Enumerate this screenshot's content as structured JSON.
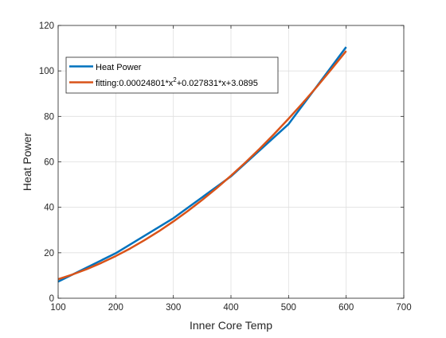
{
  "chart_data": {
    "type": "line",
    "title": "",
    "xlabel": "Inner Core Temp",
    "ylabel": "Heat Power",
    "xlim": [
      100,
      700
    ],
    "ylim": [
      0,
      120
    ],
    "xticks": [
      100,
      200,
      300,
      400,
      500,
      600,
      700
    ],
    "yticks": [
      0,
      20,
      40,
      60,
      80,
      100,
      120
    ],
    "xtick_labels": [
      "100",
      "200",
      "300",
      "400",
      "500",
      "600",
      "700"
    ],
    "ytick_labels": [
      "0",
      "20",
      "40",
      "60",
      "80",
      "100",
      "120"
    ],
    "grid": true,
    "legend_position": "top-left",
    "series": [
      {
        "name": "Heat Power",
        "color": "#0072BD",
        "x": [
          100,
          200,
          300,
          400,
          500,
          600
        ],
        "y": [
          7.3,
          19.8,
          35.2,
          53.6,
          76.6,
          110.5
        ]
      },
      {
        "name_prefix": "fitting:0.00024801*x",
        "name_superscript": "2",
        "name_suffix": "+0.027831*x+3.0895",
        "color": "#D95319",
        "x": [
          100,
          125,
          150,
          175,
          200,
          225,
          250,
          275,
          300,
          325,
          350,
          375,
          400,
          425,
          450,
          475,
          500,
          525,
          550,
          575,
          600
        ],
        "y": [
          8.36,
          10.45,
          12.84,
          15.55,
          18.56,
          21.88,
          25.55,
          29.48,
          33.77,
          38.37,
          43.23,
          48.41,
          53.9,
          59.7,
          65.81,
          72.23,
          78.99,
          86.01,
          93.31,
          100.94,
          108.79
        ]
      }
    ]
  }
}
